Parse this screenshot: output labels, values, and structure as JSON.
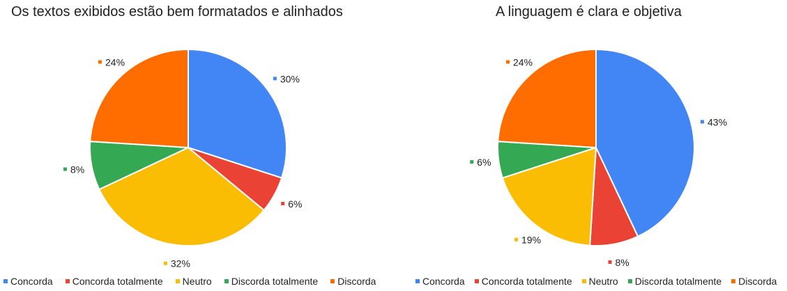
{
  "chart_data": [
    {
      "type": "pie",
      "title": "Os textos exibidos estão bem formatados e alinhados",
      "legend_position": "bottom",
      "slices": [
        {
          "label": "Concorda",
          "value": 30,
          "value_label": "30%",
          "color": "#4285F4"
        },
        {
          "label": "Concorda totalmente",
          "value": 6,
          "value_label": "6%",
          "color": "#EA4335"
        },
        {
          "label": "Neutro",
          "value": 32,
          "value_label": "32%",
          "color": "#FBBC04"
        },
        {
          "label": "Discorda totalmente",
          "value": 8,
          "value_label": "8%",
          "color": "#34A853"
        },
        {
          "label": "Discorda",
          "value": 24,
          "value_label": "24%",
          "color": "#FF6D01"
        }
      ]
    },
    {
      "type": "pie",
      "title": "A linguagem é clara e objetiva",
      "legend_position": "bottom",
      "slices": [
        {
          "label": "Concorda",
          "value": 43,
          "value_label": "43%",
          "color": "#4285F4"
        },
        {
          "label": "Concorda totalmente",
          "value": 8,
          "value_label": "8%",
          "color": "#EA4335"
        },
        {
          "label": "Neutro",
          "value": 19,
          "value_label": "19%",
          "color": "#FBBC04"
        },
        {
          "label": "Discorda totalmente",
          "value": 6,
          "value_label": "6%",
          "color": "#34A853"
        },
        {
          "label": "Discorda",
          "value": 24,
          "value_label": "24%",
          "color": "#FF6D01"
        }
      ]
    }
  ]
}
